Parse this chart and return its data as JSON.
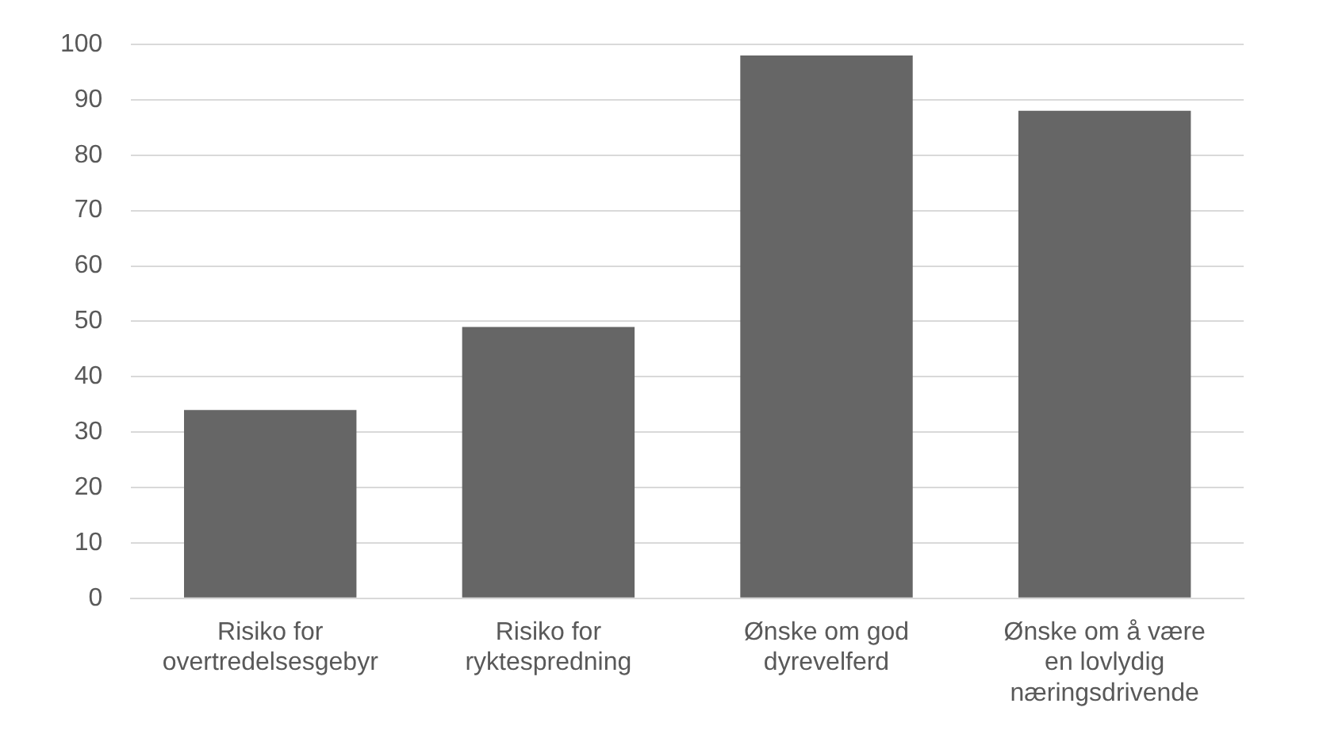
{
  "chart_data": {
    "type": "bar",
    "categories": [
      "Risiko for overtredelsesgebyr",
      "Risiko for ryktespredning",
      "Ønske om god dyrevelferd",
      "Ønske om å være en lovlydig næringsdrivende"
    ],
    "values": [
      34,
      49,
      98,
      88
    ],
    "color": "#666666",
    "ylim": [
      0,
      100
    ],
    "yticks": [
      0,
      10,
      20,
      30,
      40,
      50,
      60,
      70,
      80,
      90,
      100
    ],
    "grid": "y",
    "legend": false
  }
}
